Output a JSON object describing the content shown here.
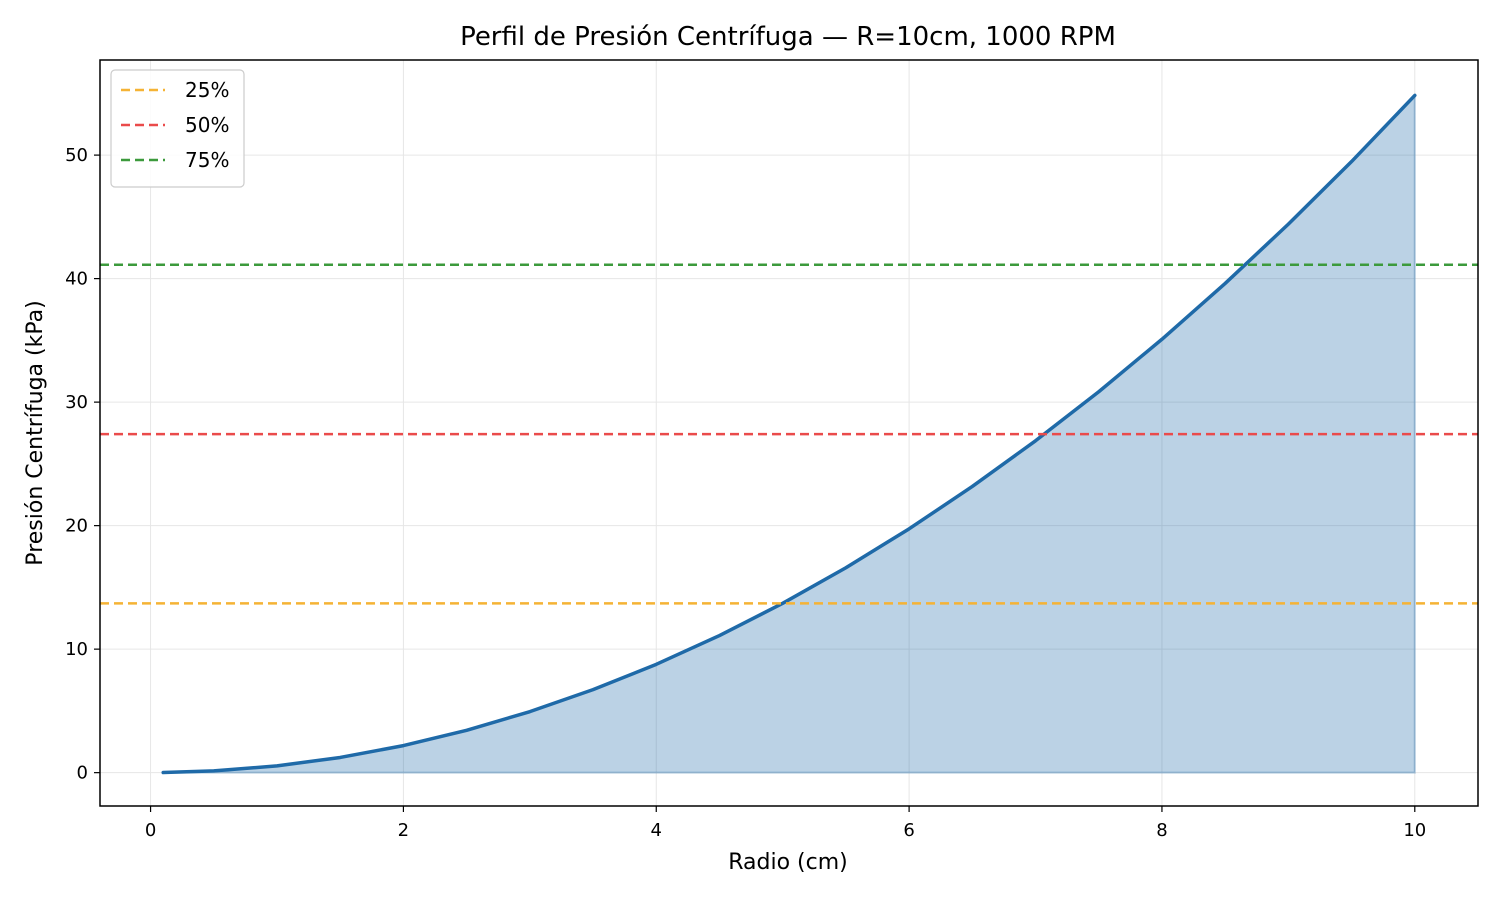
{
  "chart_data": {
    "type": "area",
    "title": "Perfil de Presión Centrífuga — R=10cm, 1000 RPM",
    "xlabel": "Radio (cm)",
    "ylabel": "Presión Centrífuga (kPa)",
    "xlim": [
      -0.4,
      10.5
    ],
    "ylim": [
      -2.7,
      57.7
    ],
    "x_ticks": [
      0,
      2,
      4,
      6,
      8,
      10
    ],
    "x_tick_labels": [
      "0",
      "2",
      "4",
      "6",
      "8",
      "10"
    ],
    "y_ticks": [
      0,
      10,
      20,
      30,
      40,
      50
    ],
    "y_tick_labels": [
      "0",
      "10",
      "20",
      "30",
      "40",
      "50"
    ],
    "grid": true,
    "legend_position": "top-left",
    "series": [
      {
        "color": "#1f6aa8",
        "fill_color": "#1f6aa8",
        "x": [
          0.1,
          0.5,
          1,
          1.5,
          2,
          2.5,
          3,
          3.5,
          4,
          4.5,
          5,
          5.5,
          6,
          6.5,
          7,
          7.5,
          8,
          8.5,
          9,
          9.5,
          10
        ],
        "values": [
          0.01,
          0.14,
          0.55,
          1.23,
          2.19,
          3.43,
          4.94,
          6.72,
          8.77,
          11.1,
          13.71,
          16.59,
          19.74,
          23.17,
          26.87,
          30.84,
          35.09,
          39.61,
          44.41,
          49.48,
          54.83
        ]
      }
    ],
    "reference_lines": [
      {
        "label": "25%",
        "y": 13.71,
        "color": "#f5b335"
      },
      {
        "label": "50%",
        "y": 27.41,
        "color": "#ea4b4b"
      },
      {
        "label": "75%",
        "y": 41.12,
        "color": "#3c9a3c"
      }
    ]
  }
}
